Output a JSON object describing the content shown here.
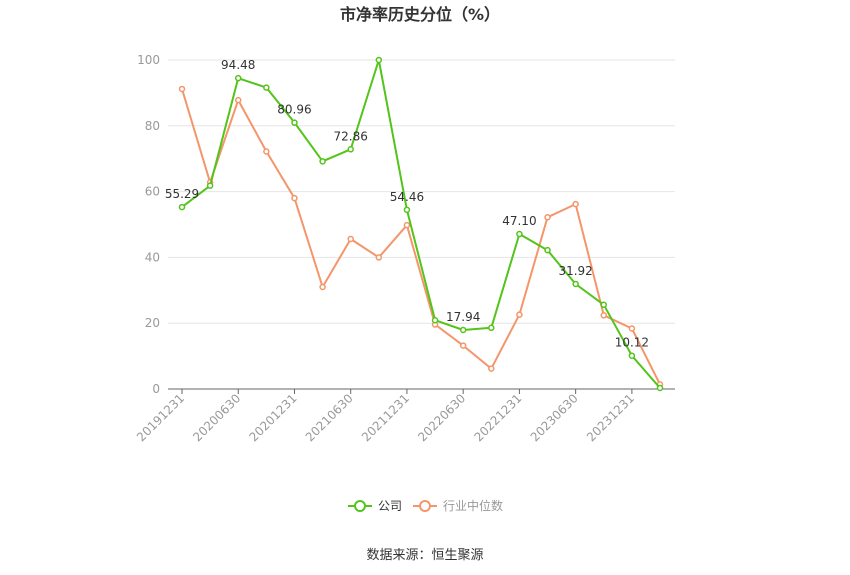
{
  "chart_data": {
    "type": "line",
    "title": "市净率历史分位（%）",
    "source": "数据来源：恒生聚源",
    "ylim": [
      0,
      100
    ],
    "y_ticks": [
      "0",
      "20",
      "40",
      "60",
      "80",
      "100"
    ],
    "x_tick_labels": [
      "20191231",
      "20200630",
      "20201231",
      "20210630",
      "20211231",
      "20220630",
      "20221231",
      "20230630",
      "20231231"
    ],
    "grid": true,
    "legend": "bottom",
    "series": [
      {
        "name": "公司",
        "color": "#52c41a",
        "values": [
          55.29,
          61.8,
          94.48,
          91.6,
          80.96,
          69.2,
          72.86,
          100,
          54.46,
          20.9,
          17.94,
          18.6,
          47.1,
          42.2,
          31.92,
          25.6,
          10.12,
          0.3
        ],
        "labels": [
          "55.29",
          null,
          "94.48",
          null,
          "80.96",
          null,
          "72.86",
          null,
          "54.46",
          null,
          "17.94",
          null,
          "47.10",
          null,
          "31.92",
          null,
          "10.12",
          null
        ]
      },
      {
        "name": "行业中位数",
        "color": "#f4956a",
        "values": [
          91.2,
          62.8,
          87.8,
          72.2,
          58.0,
          31.0,
          45.6,
          40.0,
          49.8,
          19.6,
          13.2,
          6.2,
          22.6,
          52.2,
          56.2,
          22.4,
          18.4,
          1.4
        ]
      }
    ]
  }
}
